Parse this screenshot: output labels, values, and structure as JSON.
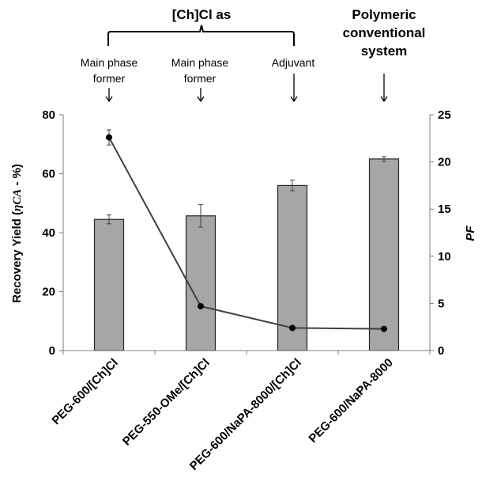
{
  "annotations": {
    "group_title": "[Ch]Cl as",
    "right_title_lines": [
      "Polymeric",
      "conventional",
      "system"
    ],
    "labels": [
      [
        "Main phase",
        "former"
      ],
      [
        "Main phase",
        "former"
      ],
      [
        "Adjuvant"
      ]
    ]
  },
  "chart_data": {
    "type": "bar",
    "categories": [
      "PEG-600/[Ch]Cl",
      "PEG-550-OMe/[Ch]Cl",
      "PEG-600/NaPA-8000/[Ch]Cl",
      "PEG-600/NaPA-8000"
    ],
    "ylabel": "Recovery Yield (ηCA - %)",
    "ylabel_parts": {
      "pre": "Recovery Yield (",
      "italic": "ηCA",
      "post": " - %)"
    },
    "y2label": "PF",
    "ylim": [
      0,
      80
    ],
    "y_ticks": [
      0,
      20,
      40,
      60,
      80
    ],
    "y2lim": [
      0,
      25
    ],
    "y2_ticks": [
      0,
      5,
      10,
      15,
      20,
      25
    ],
    "series": [
      {
        "name": "Recovery Yield",
        "type": "bar",
        "axis": "left",
        "values": [
          44.5,
          45.7,
          56.0,
          65.0
        ],
        "errors": [
          1.5,
          3.8,
          1.8,
          0.8
        ],
        "color": "#a6a6a6"
      },
      {
        "name": "PF",
        "type": "line",
        "axis": "right",
        "values": [
          22.6,
          4.7,
          2.4,
          2.3
        ],
        "errors": [
          0.8,
          0,
          0,
          0
        ],
        "color": "#404040"
      }
    ]
  }
}
